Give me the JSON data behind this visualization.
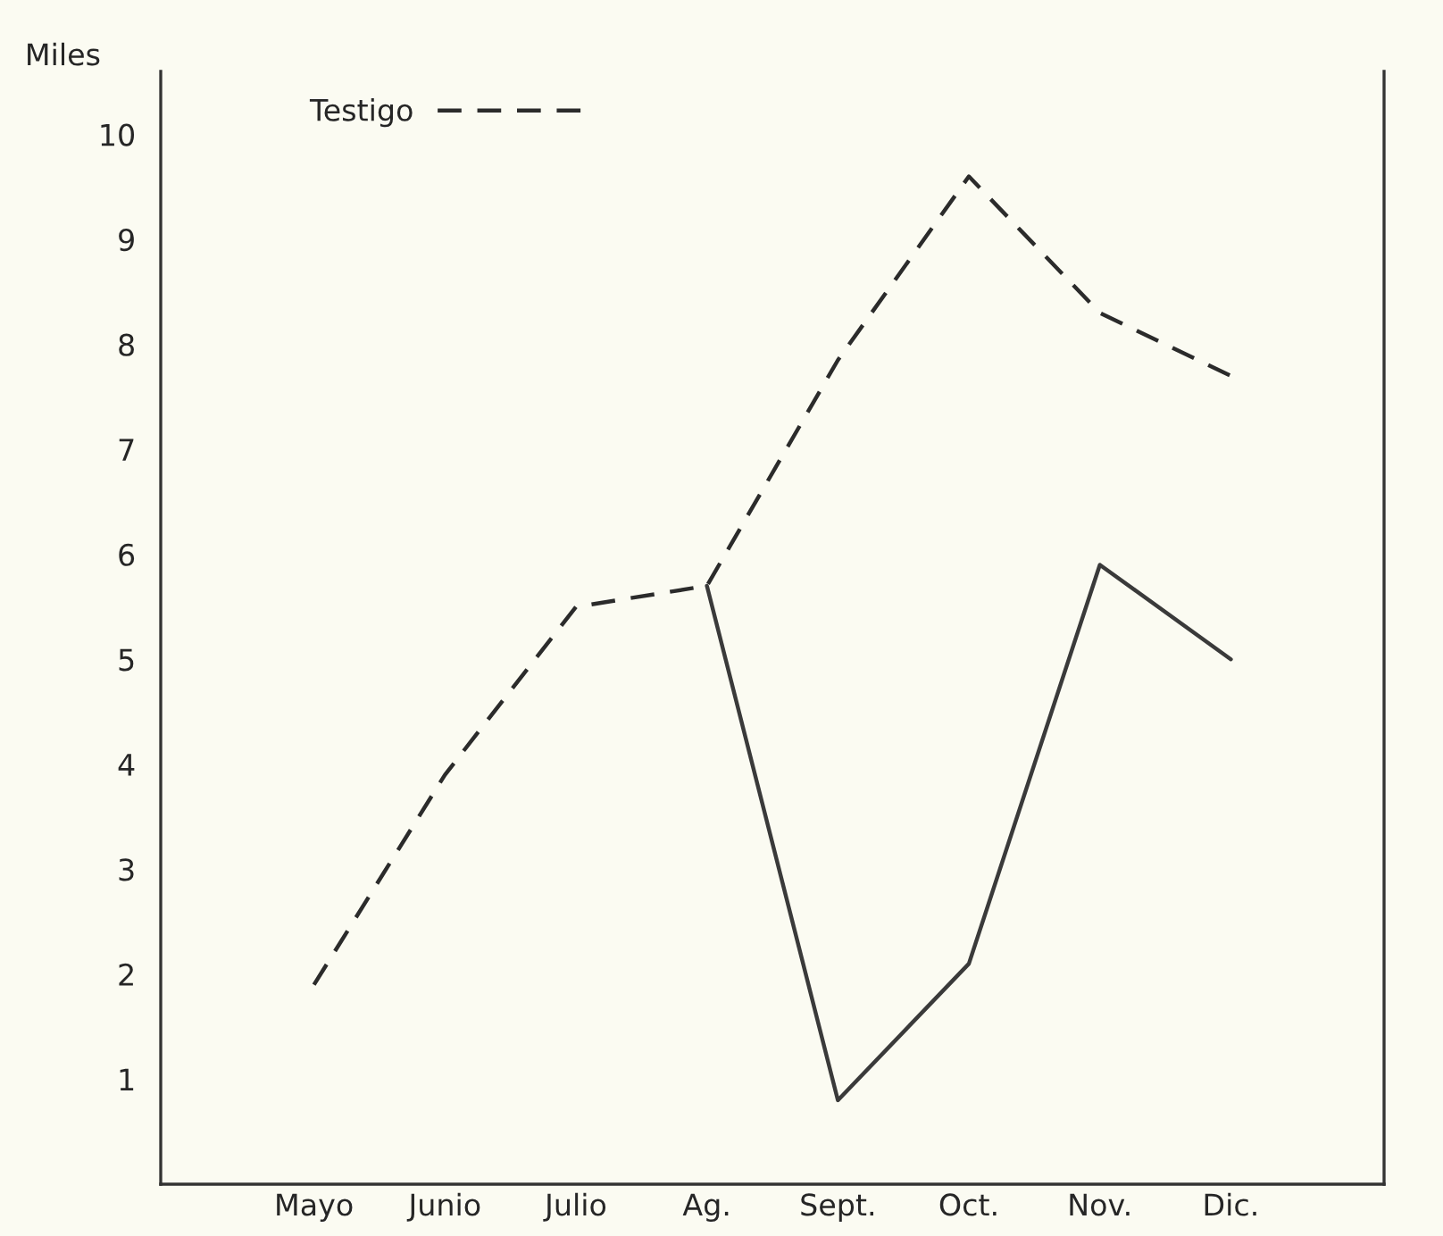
{
  "chart_data": {
    "type": "line",
    "ylabel": "Miles",
    "categories": [
      "Mayo",
      "Junio",
      "Julio",
      "Ag.",
      "Sept.",
      "Oct.",
      "Nov.",
      "Dic."
    ],
    "series": [
      {
        "name": "Testigo",
        "color": "#2b2b2b",
        "line_style": "dashed",
        "values": [
          1.9,
          3.9,
          5.5,
          5.7,
          7.85,
          9.6,
          8.3,
          7.7
        ]
      },
      {
        "color": "#3a3a3a",
        "line_style": "solid",
        "values": [
          null,
          null,
          null,
          5.7,
          0.8,
          2.1,
          5.9,
          5.0
        ]
      }
    ],
    "ylim": [
      0,
      10.6
    ],
    "yticks": [
      1,
      2,
      3,
      4,
      5,
      6,
      7,
      8,
      9,
      10
    ],
    "grid": false,
    "legend": "top left",
    "marker": "none"
  }
}
